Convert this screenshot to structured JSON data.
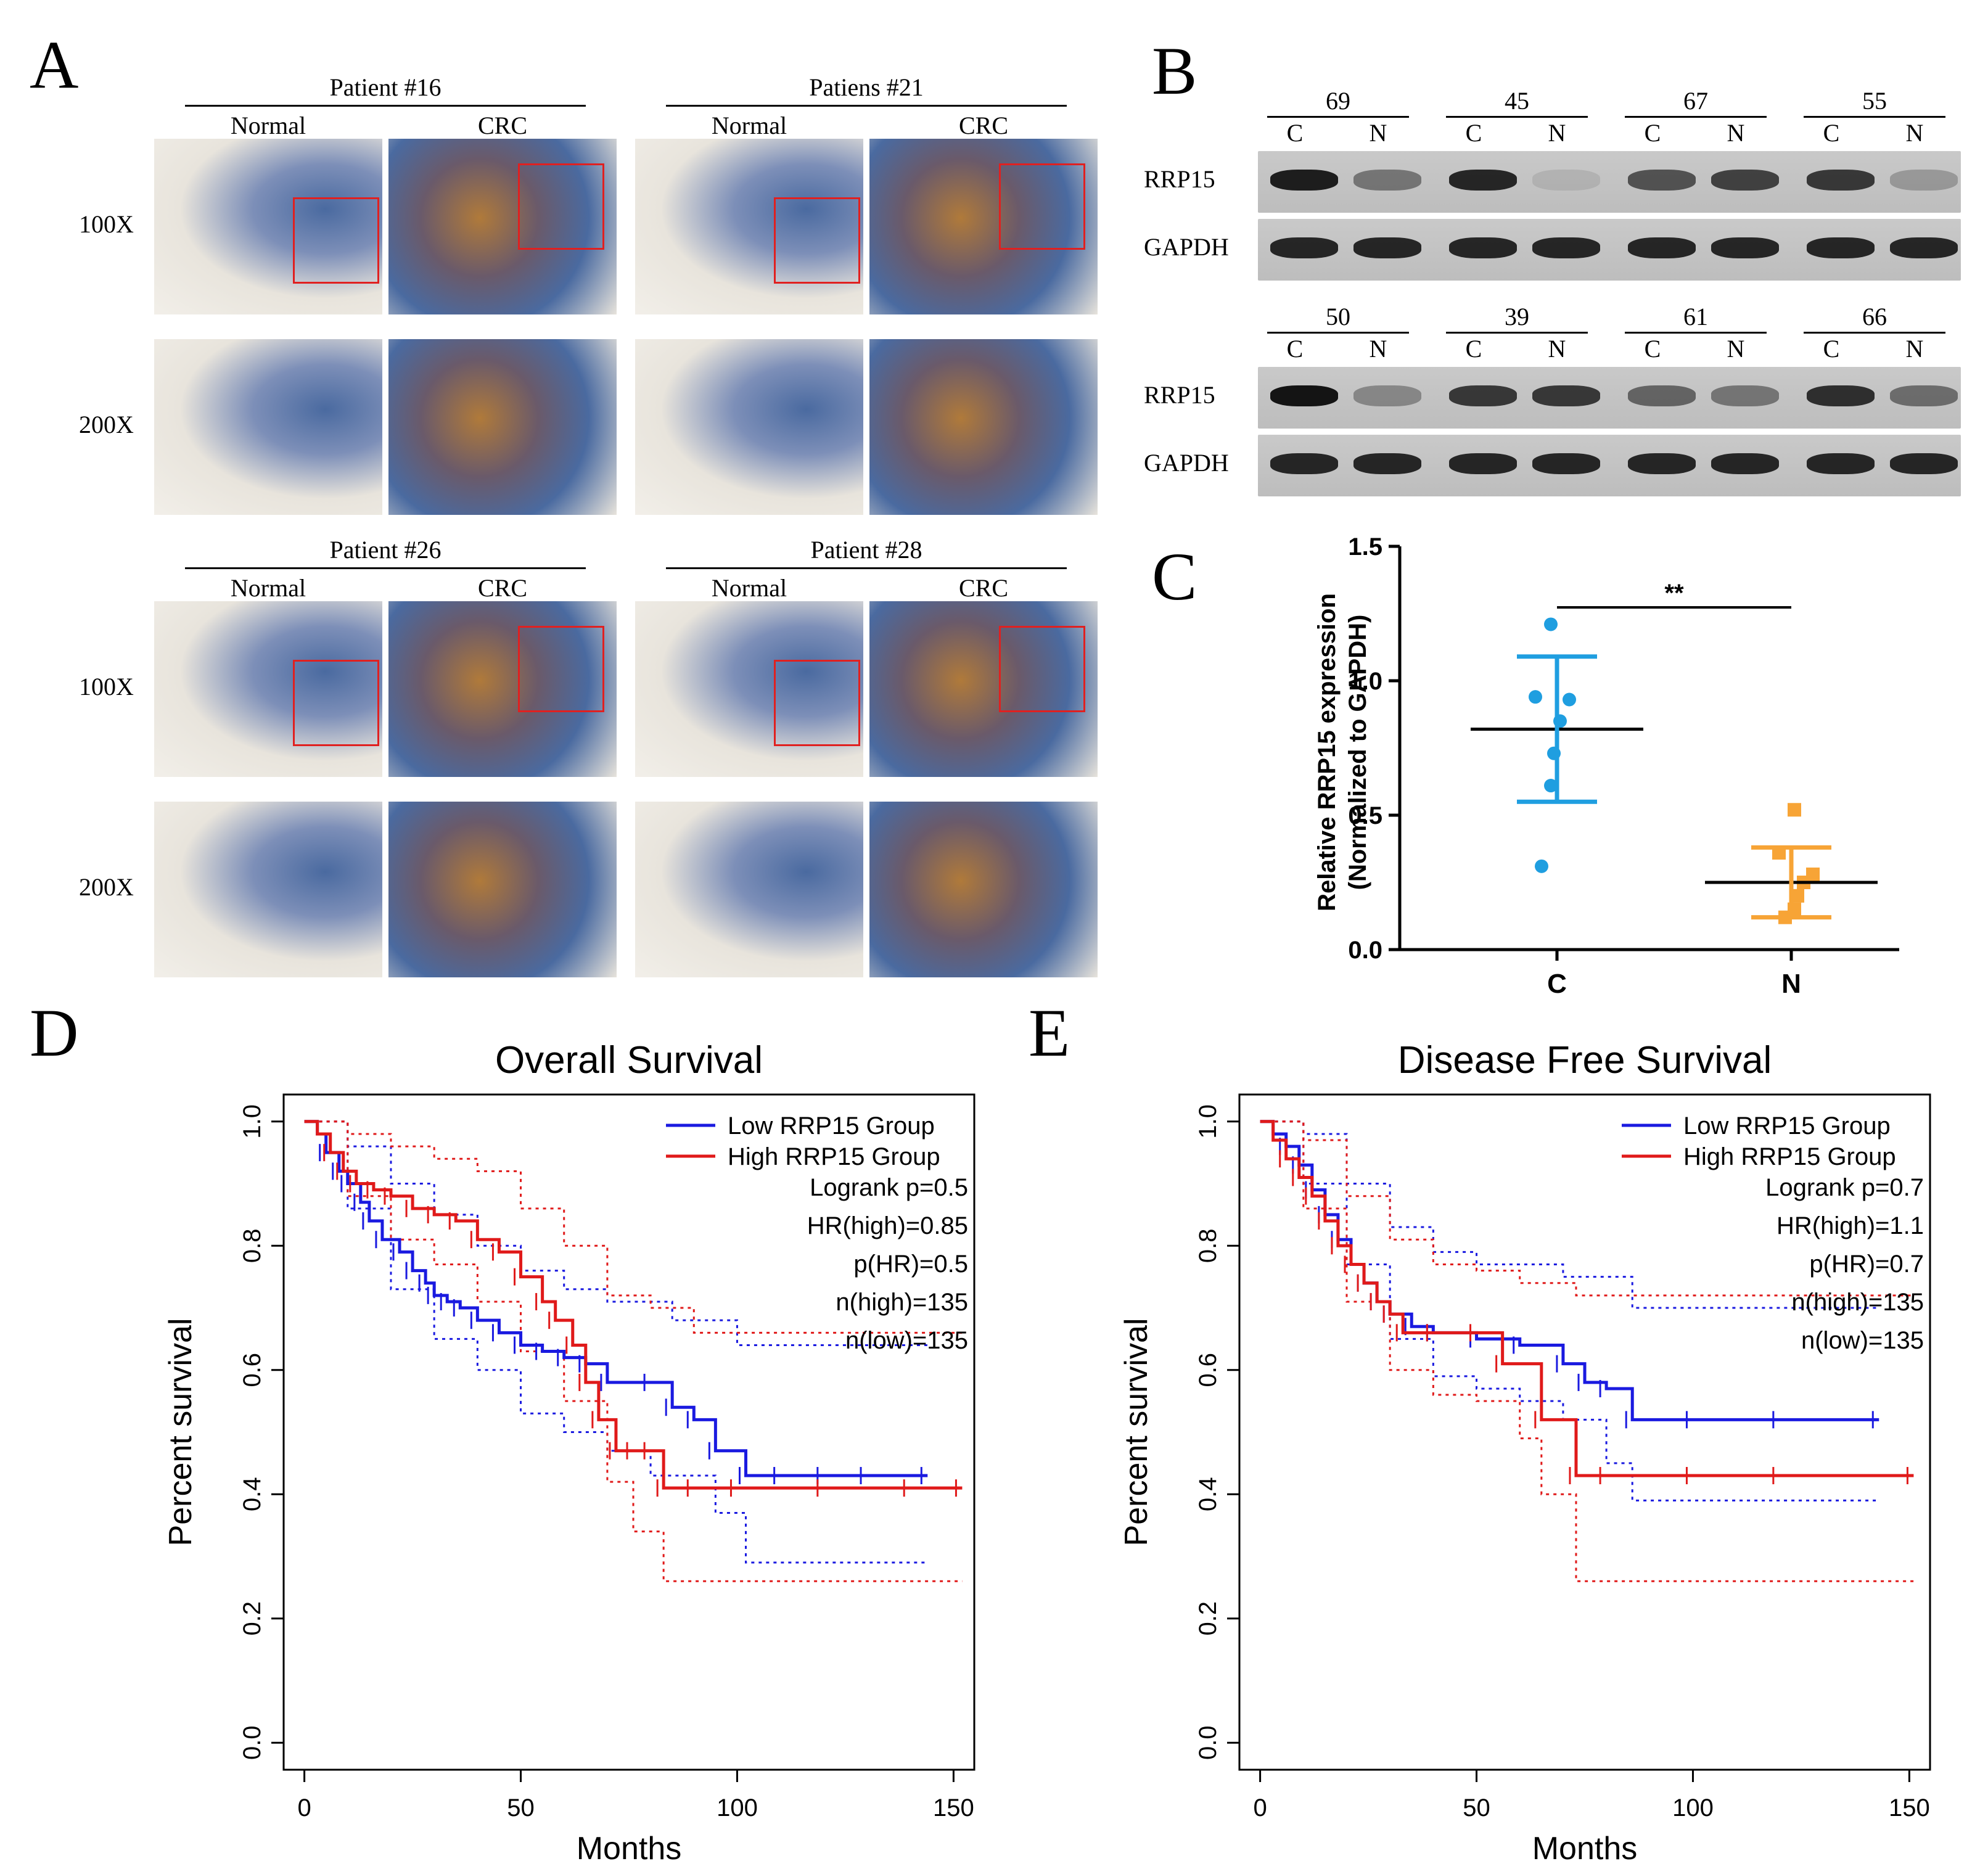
{
  "figure": {
    "panel_letters": [
      "A",
      "B",
      "C",
      "D",
      "E"
    ]
  },
  "panel_a": {
    "patients": [
      {
        "title": "Patient #16",
        "normal": "Normal",
        "crc": "CRC"
      },
      {
        "title": "Patiens #21",
        "normal": "Normal",
        "crc": "CRC"
      },
      {
        "title": "Patient #26",
        "normal": "Normal",
        "crc": "CRC"
      },
      {
        "title": "Patient #28",
        "normal": "Normal",
        "crc": "CRC"
      }
    ],
    "mag_labels": [
      "100X",
      "200X",
      "100X",
      "200X"
    ],
    "colors": {
      "zoom_box": "#e02020",
      "tissue_blue": "#4a6aa0",
      "tissue_brown": "#b07a3a",
      "background": "#e8e4dc"
    }
  },
  "panel_b": {
    "rows": [
      {
        "samples": [
          "69",
          "45",
          "67",
          "55"
        ]
      },
      {
        "samples": [
          "50",
          "39",
          "61",
          "66"
        ]
      }
    ],
    "lane_labels": [
      "C",
      "N"
    ],
    "protein_labels": [
      "RRP15",
      "GAPDH"
    ]
  },
  "panel_c": {
    "chart_data": {
      "type": "scatter",
      "ylabel_line1": "Relative RRP15 expression",
      "ylabel_line2": "(Normalized to GAPDH)",
      "ylim": [
        0.0,
        1.5
      ],
      "yticks": [
        "0.0",
        "0.5",
        "1.0",
        "1.5"
      ],
      "categories": [
        "C",
        "N"
      ],
      "significance": "**",
      "series": [
        {
          "category": "C",
          "color": "#1f9ee0",
          "marker": "circle",
          "values": [
            1.21,
            0.94,
            0.93,
            0.85,
            0.73,
            0.61,
            0.31
          ],
          "mean": 0.82,
          "sd": 0.27
        },
        {
          "category": "N",
          "color": "#f7a436",
          "marker": "square",
          "values": [
            0.52,
            0.36,
            0.28,
            0.25,
            0.2,
            0.15,
            0.12
          ],
          "mean": 0.25,
          "sd": 0.13
        }
      ]
    }
  },
  "panel_d": {
    "chart_data": {
      "type": "line",
      "title": "Overall Survival",
      "xlabel": "Months",
      "ylabel": "Percent survival",
      "xlim": [
        0,
        150
      ],
      "ylim": [
        0.0,
        1.0
      ],
      "xticks": [
        "0",
        "50",
        "100",
        "150"
      ],
      "yticks": [
        "0.0",
        "0.2",
        "0.4",
        "0.6",
        "0.8",
        "1.0"
      ],
      "legend": [
        "Low RRP15 Group",
        "High RRP15 Group"
      ],
      "stats": [
        "Logrank p=0.5",
        "HR(high)=0.85",
        "p(HR)=0.5",
        "n(high)=135",
        "n(low)=135"
      ],
      "series": [
        {
          "name": "Low RRP15 Group",
          "color": "#1a1ae0",
          "x": [
            0,
            3,
            5,
            8,
            10,
            13,
            15,
            18,
            22,
            25,
            28,
            30,
            33,
            36,
            40,
            45,
            50,
            55,
            60,
            65,
            70,
            80,
            85,
            90,
            95,
            102,
            110,
            120,
            130,
            144
          ],
          "y": [
            1.0,
            0.98,
            0.95,
            0.92,
            0.9,
            0.87,
            0.84,
            0.81,
            0.79,
            0.76,
            0.74,
            0.72,
            0.71,
            0.7,
            0.68,
            0.66,
            0.64,
            0.63,
            0.62,
            0.61,
            0.58,
            0.58,
            0.54,
            0.52,
            0.47,
            0.43,
            0.43,
            0.43,
            0.43,
            0.43
          ]
        },
        {
          "name": "High RRP15 Group",
          "color": "#e01a1a",
          "x": [
            0,
            3,
            6,
            9,
            12,
            16,
            20,
            25,
            30,
            35,
            40,
            45,
            50,
            55,
            58,
            62,
            65,
            68,
            72,
            76,
            80,
            83,
            90,
            100,
            120,
            140,
            152
          ],
          "y": [
            1.0,
            0.98,
            0.95,
            0.92,
            0.9,
            0.89,
            0.88,
            0.86,
            0.85,
            0.84,
            0.81,
            0.79,
            0.75,
            0.71,
            0.68,
            0.64,
            0.58,
            0.52,
            0.47,
            0.47,
            0.47,
            0.41,
            0.41,
            0.41,
            0.41,
            0.41,
            0.41
          ]
        }
      ],
      "ci": [
        {
          "color": "#1a1ae0",
          "upper": {
            "x": [
              0,
              10,
              20,
              30,
              40,
              50,
              60,
              70,
              80,
              85,
              100,
              110,
              144
            ],
            "y": [
              1.0,
              0.96,
              0.9,
              0.85,
              0.8,
              0.76,
              0.73,
              0.71,
              0.71,
              0.68,
              0.64,
              0.64,
              0.64
            ]
          },
          "lower": {
            "x": [
              0,
              10,
              20,
              30,
              40,
              50,
              60,
              70,
              80,
              95,
              102,
              144
            ],
            "y": [
              1.0,
              0.86,
              0.73,
              0.65,
              0.6,
              0.53,
              0.5,
              0.47,
              0.43,
              0.37,
              0.29,
              0.29
            ]
          }
        },
        {
          "color": "#e01a1a",
          "upper": {
            "x": [
              0,
              10,
              20,
              30,
              40,
              50,
              60,
              70,
              80,
              90,
              100,
              152
            ],
            "y": [
              1.0,
              0.98,
              0.96,
              0.94,
              0.92,
              0.86,
              0.8,
              0.72,
              0.7,
              0.66,
              0.66,
              0.66
            ]
          },
          "lower": {
            "x": [
              0,
              10,
              20,
              30,
              40,
              50,
              60,
              70,
              76,
              83,
              100,
              152
            ],
            "y": [
              1.0,
              0.88,
              0.81,
              0.77,
              0.71,
              0.63,
              0.55,
              0.42,
              0.34,
              0.26,
              0.26,
              0.26
            ]
          }
        }
      ]
    }
  },
  "panel_e": {
    "chart_data": {
      "type": "line",
      "title": "Disease Free Survival",
      "xlabel": "Months",
      "ylabel": "Percent survival",
      "xlim": [
        0,
        150
      ],
      "ylim": [
        0.0,
        1.0
      ],
      "xticks": [
        "0",
        "50",
        "100",
        "150"
      ],
      "yticks": [
        "0.0",
        "0.2",
        "0.4",
        "0.6",
        "0.8",
        "1.0"
      ],
      "legend": [
        "Low RRP15 Group",
        "High RRP15 Group"
      ],
      "stats": [
        "Logrank p=0.7",
        "HR(high)=1.1",
        "p(HR)=0.7",
        "n(high)=135",
        "n(low)=135"
      ],
      "series": [
        {
          "name": "Low RRP15 Group",
          "color": "#1a1ae0",
          "x": [
            0,
            3,
            6,
            9,
            12,
            15,
            18,
            21,
            24,
            27,
            30,
            35,
            40,
            50,
            60,
            70,
            75,
            80,
            86,
            100,
            120,
            143
          ],
          "y": [
            1.0,
            0.98,
            0.96,
            0.93,
            0.89,
            0.85,
            0.81,
            0.77,
            0.74,
            0.71,
            0.69,
            0.67,
            0.66,
            0.65,
            0.64,
            0.61,
            0.58,
            0.57,
            0.52,
            0.52,
            0.52,
            0.52
          ]
        },
        {
          "name": "High RRP15 Group",
          "color": "#e01a1a",
          "x": [
            0,
            3,
            6,
            9,
            12,
            15,
            18,
            21,
            24,
            27,
            30,
            33,
            40,
            50,
            56,
            65,
            73,
            80,
            100,
            120,
            151
          ],
          "y": [
            1.0,
            0.97,
            0.94,
            0.91,
            0.88,
            0.84,
            0.8,
            0.77,
            0.74,
            0.71,
            0.69,
            0.66,
            0.66,
            0.66,
            0.61,
            0.52,
            0.43,
            0.43,
            0.43,
            0.43,
            0.43
          ]
        }
      ],
      "ci": [
        {
          "color": "#1a1ae0",
          "upper": {
            "x": [
              0,
              10,
              20,
              30,
              40,
              50,
              60,
              70,
              86,
              100,
              143
            ],
            "y": [
              1.0,
              0.98,
              0.9,
              0.83,
              0.79,
              0.77,
              0.77,
              0.75,
              0.7,
              0.7,
              0.7
            ]
          },
          "lower": {
            "x": [
              0,
              10,
              20,
              30,
              40,
              50,
              60,
              70,
              80,
              86,
              143
            ],
            "y": [
              1.0,
              0.9,
              0.77,
              0.65,
              0.59,
              0.57,
              0.55,
              0.52,
              0.45,
              0.39,
              0.39
            ]
          }
        },
        {
          "color": "#e01a1a",
          "upper": {
            "x": [
              0,
              10,
              20,
              30,
              40,
              50,
              60,
              73,
              80,
              100,
              151
            ],
            "y": [
              1.0,
              0.97,
              0.88,
              0.81,
              0.77,
              0.76,
              0.74,
              0.72,
              0.72,
              0.72,
              0.72
            ]
          },
          "lower": {
            "x": [
              0,
              10,
              20,
              30,
              40,
              50,
              60,
              65,
              73,
              100,
              151
            ],
            "y": [
              1.0,
              0.86,
              0.71,
              0.6,
              0.56,
              0.55,
              0.49,
              0.4,
              0.26,
              0.26,
              0.26
            ]
          }
        }
      ]
    }
  }
}
